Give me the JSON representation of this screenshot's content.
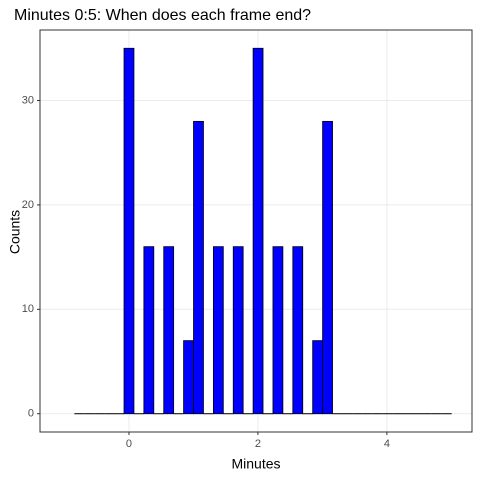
{
  "chart_data": {
    "type": "histogram",
    "title": "Minutes 0:5: When does each frame end?",
    "x_label": "Minutes",
    "y_label": "Counts",
    "bins": [
      -0.847,
      -0.693,
      -0.539,
      -0.385,
      -0.231,
      -0.077,
      0.077,
      0.231,
      0.385,
      0.539,
      0.693,
      0.847,
      1.001,
      1.155,
      1.309,
      1.463,
      1.617,
      1.771,
      1.925,
      2.079,
      2.233,
      2.387,
      2.541,
      2.695,
      2.849,
      3.003,
      3.157,
      3.311,
      3.465,
      3.619,
      3.773,
      3.927,
      4.081,
      4.235,
      4.389,
      4.543,
      4.697,
      4.851,
      5.005
    ],
    "values": [
      0,
      0,
      0,
      0,
      0,
      35,
      0,
      16,
      0,
      16,
      0,
      7,
      28,
      0,
      16,
      0,
      16,
      0,
      35,
      0,
      16,
      0,
      16,
      0,
      7,
      28,
      0,
      0,
      0,
      0,
      0,
      0,
      0,
      0,
      0,
      0,
      0,
      0
    ],
    "color": "#0000ff",
    "xlim": [
      -1.38,
      5.32
    ],
    "xticks": [
      0,
      2,
      4
    ],
    "ylim": [
      -1.75,
      36.75
    ],
    "yticks": [
      0,
      10,
      20,
      30
    ],
    "grid": true
  }
}
